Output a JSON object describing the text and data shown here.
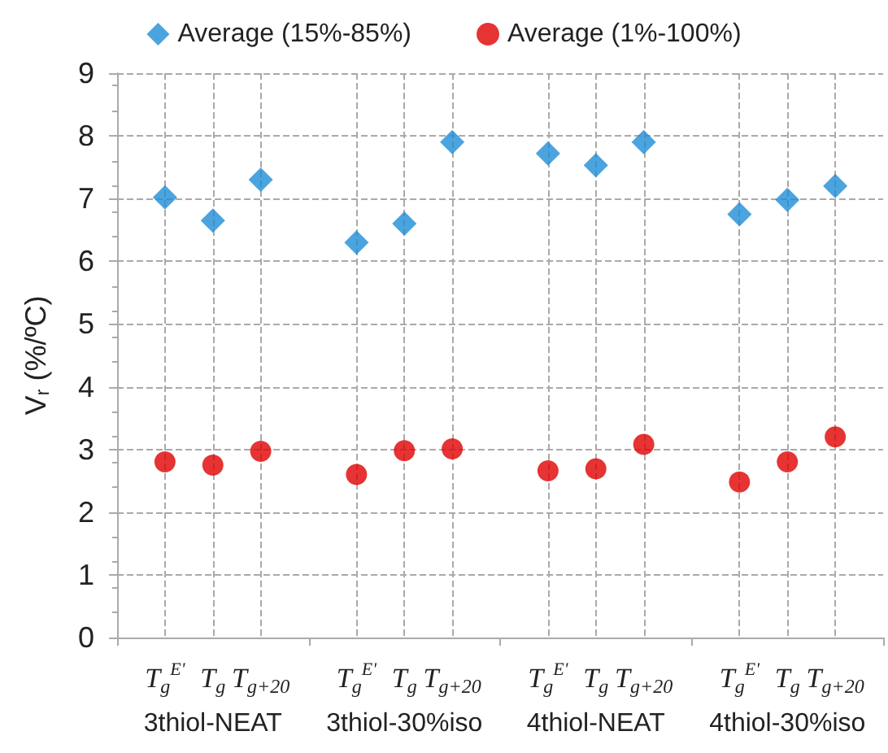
{
  "chart_data": {
    "type": "scatter",
    "ylabel": "V$_{r}$ (%/ºC)",
    "categories": [
      null,
      "T$_{g}$$^{E'}$",
      "T$_{g}$",
      "T$_{g+20}$",
      null,
      "T$_{g}$$^{E'}$",
      "T$_{g}$",
      "T$_{g+20}$",
      null,
      "T$_{g}$$^{E'}$",
      "T$_{g}$",
      "T$_{g+20}$",
      null,
      "T$_{g}$$^{E'}$",
      "T$_{g}$",
      "T$_{g+20}$",
      null
    ],
    "series": [
      {
        "name": "Average (15%-85%)",
        "color": "#1f8dd6",
        "marker": "diamond",
        "values": [
          null,
          7.02,
          6.65,
          7.3,
          null,
          6.3,
          6.6,
          7.9,
          null,
          7.72,
          7.53,
          7.9,
          null,
          6.75,
          6.98,
          7.2,
          null
        ]
      },
      {
        "name": "Average (1%-100%)",
        "color": "#e00000",
        "marker": "circle",
        "values": [
          null,
          2.8,
          2.75,
          2.97,
          null,
          2.6,
          2.98,
          3.01,
          null,
          2.66,
          2.69,
          3.08,
          null,
          2.48,
          2.8,
          3.2,
          null
        ]
      }
    ],
    "annotations": [
      "3thiol-NEAT",
      "3thiol-30%iso",
      "4thiol-NEAT",
      "4thiol-30%iso"
    ],
    "ylim": [
      0,
      9
    ],
    "yticks": [
      0,
      1,
      2,
      3,
      4,
      5,
      6,
      7,
      8,
      9
    ],
    "grid": true,
    "legend": "top"
  }
}
